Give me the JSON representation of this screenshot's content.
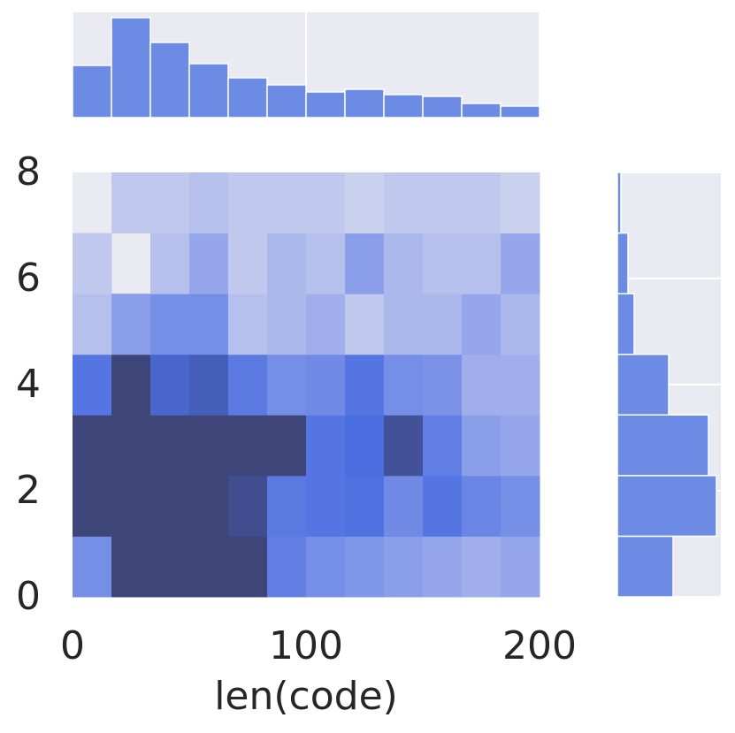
{
  "chart_data": [
    {
      "type": "hist2d",
      "xlabel": "len(code)",
      "xbins": [
        0,
        16.667,
        33.333,
        50,
        66.667,
        83.333,
        100,
        116.667,
        133.333,
        150,
        166.667,
        183.333,
        200
      ],
      "ybins": [
        0,
        1.143,
        2.286,
        3.429,
        4.571,
        5.714,
        6.857,
        8
      ],
      "counts": [
        [
          12,
          30,
          30,
          30,
          30,
          16,
          12,
          10,
          9,
          8,
          7,
          8
        ],
        [
          30,
          30,
          30,
          30,
          28,
          17,
          18,
          19,
          13,
          18,
          14,
          12
        ],
        [
          30,
          30,
          30,
          30,
          30,
          30,
          18,
          20,
          27,
          16,
          9,
          8
        ],
        [
          18,
          30,
          22,
          24,
          17,
          12,
          13,
          18,
          12,
          11,
          7,
          7
        ],
        [
          5,
          9,
          12,
          12,
          5,
          6,
          7,
          4,
          6,
          6,
          8,
          6
        ],
        [
          4,
          0,
          5,
          8,
          4,
          6,
          5,
          9,
          6,
          5,
          5,
          8
        ],
        [
          0,
          4,
          4,
          5,
          4,
          4,
          4,
          3,
          4,
          4,
          4,
          3
        ]
      ],
      "clim": [
        0,
        30
      ],
      "colors": [
        "#eaeaf2",
        "#8096e8",
        "#4a6ee0",
        "#3e4579"
      ],
      "xlim": [
        0,
        200
      ],
      "xticks": [
        0,
        100,
        200
      ],
      "ylim": [
        0,
        8
      ],
      "yticks": [
        0,
        2,
        4,
        6,
        8
      ]
    },
    {
      "type": "histogram",
      "orientation": "vertical",
      "bins": [
        0,
        16.667,
        33.333,
        50,
        66.667,
        83.333,
        100,
        116.667,
        133.333,
        150,
        166.667,
        183.333,
        200
      ],
      "values": [
        59,
        113,
        85,
        61,
        45,
        37,
        29,
        32,
        26,
        24,
        16,
        13
      ],
      "color": "#6c8be5",
      "xlim": [
        0,
        200
      ],
      "xticks": [
        0,
        100,
        200
      ],
      "ylim": [
        0,
        119
      ],
      "grid": true
    },
    {
      "type": "histogram",
      "orientation": "horizontal",
      "bins": [
        0,
        1.143,
        2.286,
        3.429,
        4.571,
        5.714,
        6.857,
        8
      ],
      "values": [
        63,
        112,
        103,
        58,
        19,
        12,
        4
      ],
      "color": "#6c8be5",
      "ylim": [
        0,
        8
      ],
      "yticks": [
        0,
        2,
        4,
        6,
        8
      ],
      "xlim": [
        0,
        117
      ],
      "grid": true
    }
  ]
}
